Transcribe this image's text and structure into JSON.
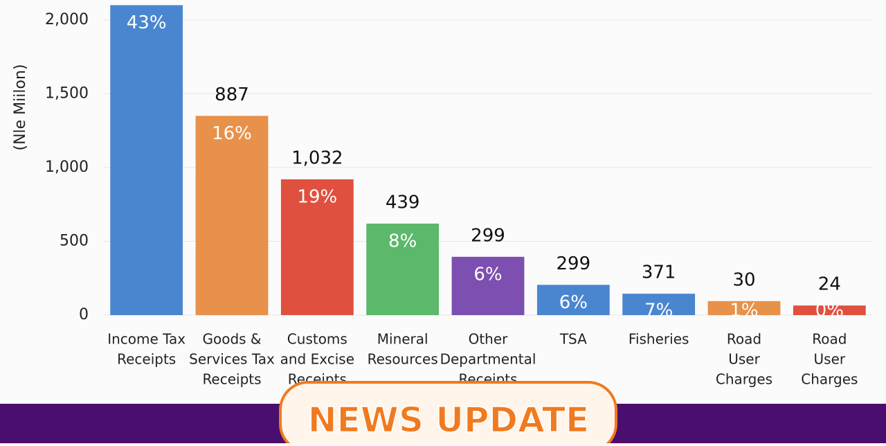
{
  "chart_data": {
    "type": "bar",
    "y_axis_title": "(Nle Miilon)",
    "categories": [
      [
        "Income Tax",
        "Receipts"
      ],
      [
        "Goods &",
        "Services Tax",
        "Receipts"
      ],
      [
        "Customs",
        "and Excise",
        "Receipts"
      ],
      [
        "Mineral",
        "Resources"
      ],
      [
        "Other",
        "Departmental",
        "Receipts"
      ],
      [
        "TSA"
      ],
      [
        "Fisheries"
      ],
      [
        "Road",
        "User",
        "Charges"
      ],
      [
        "Road",
        "User",
        "Charges"
      ]
    ],
    "values": [
      2100,
      1350,
      920,
      620,
      395,
      205,
      145,
      95,
      65
    ],
    "top_labels": [
      null,
      "887",
      "1,032",
      "439",
      "299",
      "299",
      "371",
      "30",
      "24"
    ],
    "percent_labels": [
      "43%",
      "16%",
      "19%",
      "8%",
      "6%",
      "6%",
      "7%",
      "1%",
      "0%"
    ],
    "colors": [
      "#4a86d0",
      "#e8914a",
      "#e0503e",
      "#5cb86a",
      "#7d4fb0",
      "#4a86d0",
      "#4a86d0",
      "#e8914a",
      "#e0503e"
    ],
    "ylim": [
      0,
      2135
    ],
    "yticks": [
      0,
      500,
      {
        "value": 1000,
        "label": "1,000"
      },
      {
        "value": 1500,
        "label": "1,500"
      },
      {
        "value": 2000,
        "label": "2,000"
      }
    ],
    "grid": true
  },
  "banner_text": "NEWS UPDATE"
}
